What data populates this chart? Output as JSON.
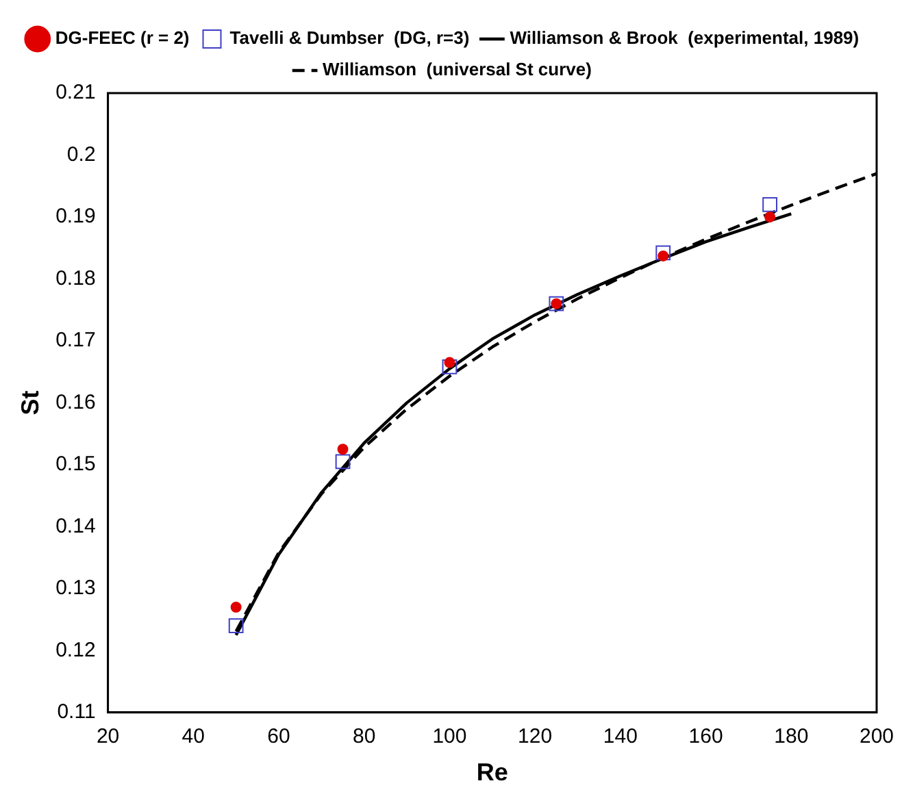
{
  "chart_data": {
    "type": "line",
    "xlabel": "Re",
    "ylabel": "St",
    "xlim": [
      20,
      200
    ],
    "xticks": [
      20,
      40,
      60,
      80,
      100,
      120,
      140,
      160,
      180,
      200
    ],
    "ylim": [
      0.11,
      0.21
    ],
    "yticks": [
      0.11,
      0.12,
      0.13,
      0.14,
      0.15,
      0.16,
      0.17,
      0.18,
      0.19,
      0.2,
      0.21
    ],
    "grid": false,
    "legend": "top",
    "series": [
      {
        "name": "Williamson & Brook  (experimental, 1989)",
        "color": "#000000",
        "marker": "none",
        "line_style": "solid",
        "x": [
          50,
          55,
          60,
          70,
          80,
          90,
          100,
          110,
          120,
          130,
          140,
          150,
          160,
          170,
          180
        ],
        "values": [
          0.1225,
          0.129,
          0.1355,
          0.1455,
          0.1535,
          0.16,
          0.1655,
          0.1703,
          0.1742,
          0.1775,
          0.1805,
          0.1833,
          0.186,
          0.1883,
          0.1905
        ]
      },
      {
        "name": "Williamson  (universal St curve)",
        "color": "#000000",
        "marker": "none",
        "line_style": "dashed",
        "x": [
          50,
          60,
          70,
          80,
          90,
          100,
          110,
          120,
          130,
          140,
          150,
          160,
          170,
          180,
          190,
          200
        ],
        "values": [
          0.1231,
          0.1358,
          0.1453,
          0.1528,
          0.159,
          0.1643,
          0.169,
          0.1731,
          0.1768,
          0.1802,
          0.1834,
          0.1864,
          0.1892,
          0.1919,
          0.1945,
          0.197
        ]
      },
      {
        "name": "Tavelli & Dumbser  (DG, r=3)",
        "type": "scatter",
        "color": "#3f3fc8",
        "marker": "square",
        "x": [
          50,
          75,
          100,
          125,
          150,
          175
        ],
        "values": [
          0.124,
          0.1505,
          0.1658,
          0.176,
          0.1842,
          0.192
        ]
      },
      {
        "name": "DG-FEEC (r = 2)",
        "type": "scatter",
        "color": "#e00000",
        "marker": "circle",
        "x": [
          50,
          75,
          100,
          125,
          150,
          175
        ],
        "values": [
          0.127,
          0.1525,
          0.1665,
          0.176,
          0.1837,
          0.19
        ]
      }
    ]
  }
}
